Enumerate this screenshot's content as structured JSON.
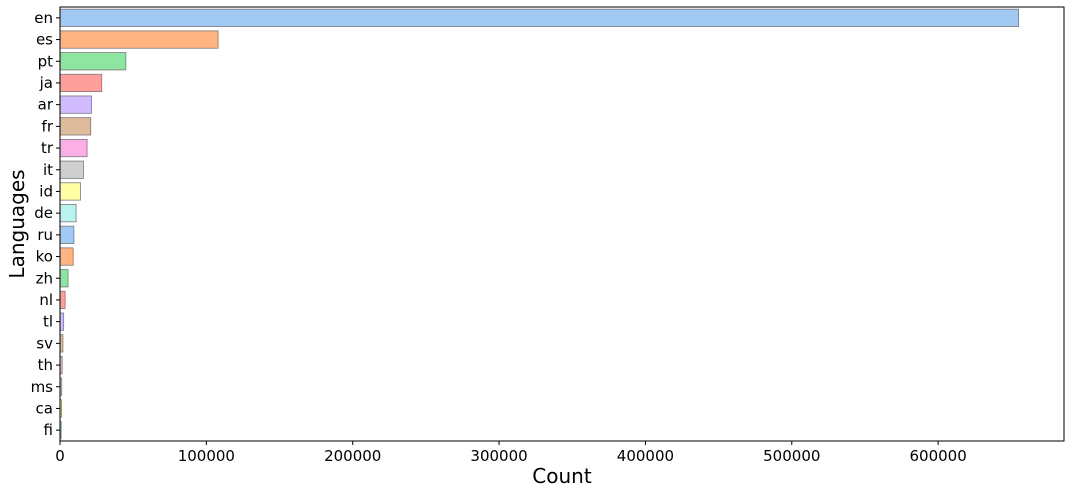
{
  "chart_data": {
    "type": "bar",
    "orientation": "horizontal",
    "xlabel": "Count",
    "ylabel": "Languages",
    "xlim": [
      0,
      686000
    ],
    "xticks": [
      0,
      100000,
      200000,
      300000,
      400000,
      500000,
      600000
    ],
    "xtick_labels": [
      "0",
      "100000",
      "200000",
      "300000",
      "400000",
      "500000",
      "600000"
    ],
    "grid": false,
    "categories": [
      "en",
      "es",
      "pt",
      "ja",
      "ar",
      "fr",
      "tr",
      "it",
      "id",
      "de",
      "ru",
      "ko",
      "zh",
      "nl",
      "tl",
      "sv",
      "th",
      "ms",
      "ca",
      "fi"
    ],
    "values": [
      655000,
      108000,
      45000,
      28500,
      21500,
      21000,
      18500,
      16000,
      14000,
      11000,
      9500,
      9000,
      5500,
      3500,
      2500,
      2000,
      1500,
      1200,
      1000,
      800
    ],
    "colors": [
      "#a1c9f4",
      "#ffb482",
      "#8de5a1",
      "#ff9f9b",
      "#d0bbff",
      "#debb9b",
      "#fab0e4",
      "#cfcfcf",
      "#fffea3",
      "#b9f2f0"
    ]
  }
}
